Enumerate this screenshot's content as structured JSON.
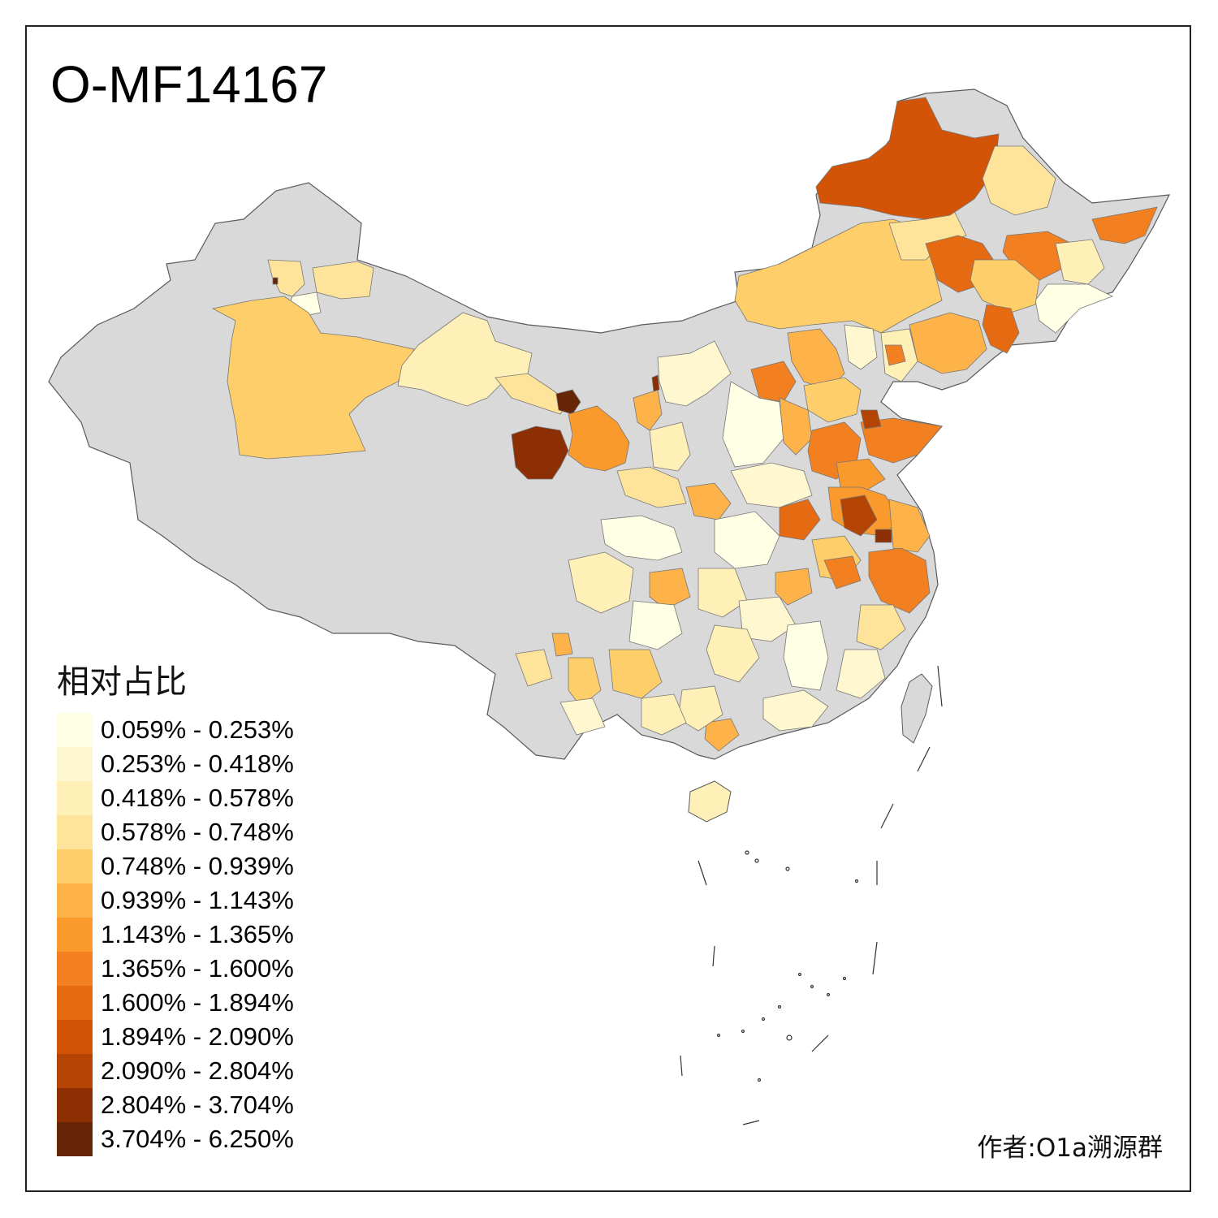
{
  "map": {
    "title": "O-MF14167",
    "credit": "作者:O1a溯源群",
    "no_data_color": "#d9d9d9",
    "border_color": "#5a5a5a"
  },
  "legend": {
    "title": "相对占比",
    "items": [
      {
        "label": "0.059% - 0.253%",
        "color": "#ffffe5"
      },
      {
        "label": "0.253% - 0.418%",
        "color": "#fff7cf"
      },
      {
        "label": "0.418% - 0.578%",
        "color": "#fff0b8"
      },
      {
        "label": "0.578% - 0.748%",
        "color": "#fee49a"
      },
      {
        "label": "0.748% - 0.939%",
        "color": "#fece6a"
      },
      {
        "label": "0.939% - 1.143%",
        "color": "#fdb349"
      },
      {
        "label": "1.143% - 1.365%",
        "color": "#fb9a2c"
      },
      {
        "label": "1.365% - 1.600%",
        "color": "#f28020"
      },
      {
        "label": "1.600% - 1.894%",
        "color": "#e66a12"
      },
      {
        "label": "1.894% - 2.090%",
        "color": "#d35407"
      },
      {
        "label": "2.090% - 2.804%",
        "color": "#b34404"
      },
      {
        "label": "2.804% - 3.704%",
        "color": "#8c3004"
      },
      {
        "label": "3.704% - 6.250%",
        "color": "#662506"
      }
    ]
  }
}
